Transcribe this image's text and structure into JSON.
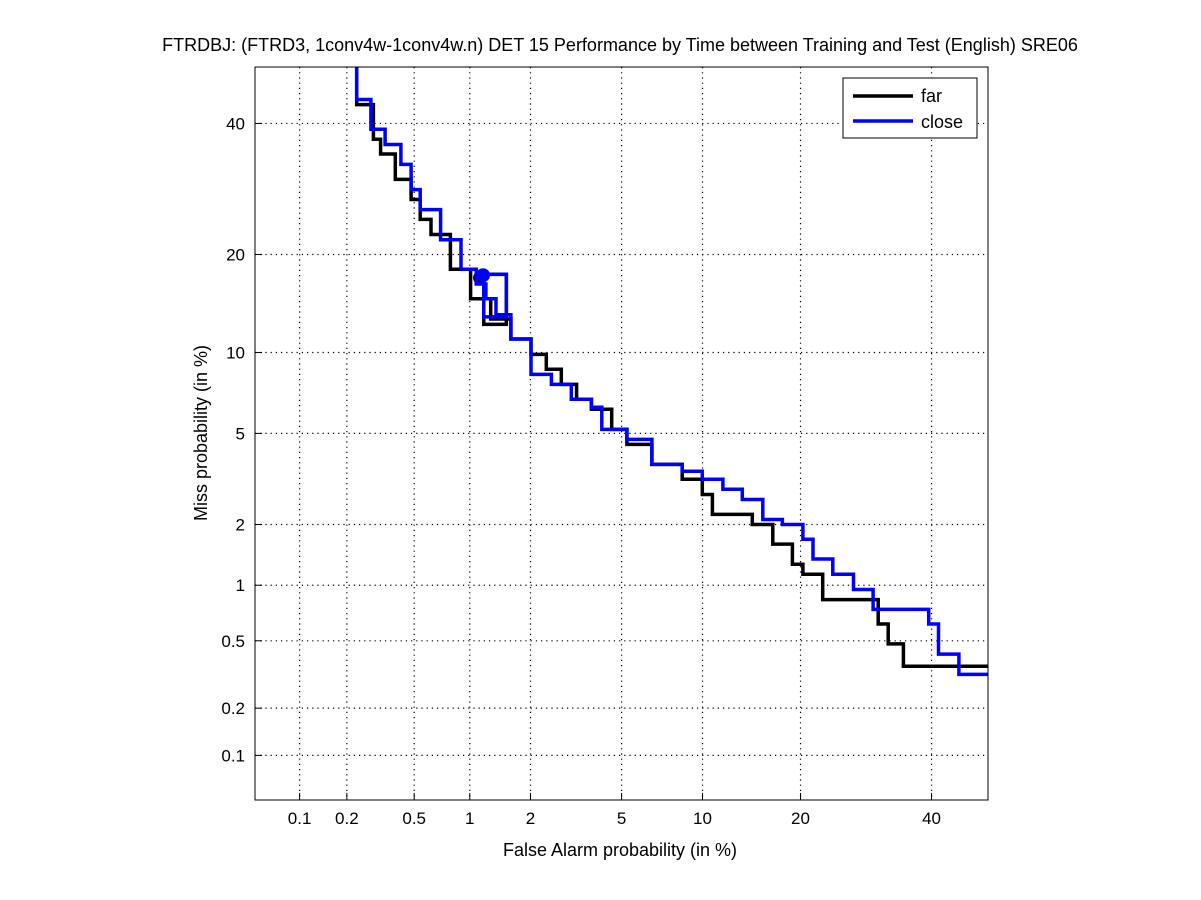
{
  "chart_data": {
    "type": "line",
    "title": "FTRDBJ: (FTRD3, 1conv4w-1conv4w.n) DET 15 Performance by Time between Training and Test (English) SRE06",
    "xlabel": "False Alarm probability (in %)",
    "ylabel": "Miss probability (in %)",
    "scale": "normal-deviate",
    "xlim": [
      0.05,
      50
    ],
    "ylim": [
      0.05,
      50
    ],
    "xticks": [
      0.1,
      0.2,
      0.5,
      1,
      2,
      5,
      10,
      20,
      40
    ],
    "xtick_labels": [
      "0.1",
      "0.2",
      "0.5",
      "1",
      "2",
      "5",
      "10",
      "20",
      "40"
    ],
    "yticks": [
      0.1,
      0.2,
      0.5,
      1,
      2,
      5,
      10,
      20,
      40
    ],
    "ytick_labels": [
      "0.1",
      "0.2",
      "0.5",
      "1",
      "2",
      "5",
      "10",
      "20",
      "40"
    ],
    "grid": true,
    "legend_position": "top-right",
    "series": [
      {
        "name": "far",
        "color": "#000000",
        "points": [
          [
            0.23,
            50
          ],
          [
            0.29,
            43.3
          ],
          [
            0.32,
            37.3
          ],
          [
            0.39,
            34.8
          ],
          [
            0.48,
            30.7
          ],
          [
            0.54,
            27.6
          ],
          [
            0.62,
            24.7
          ],
          [
            0.79,
            22.6
          ],
          [
            1.01,
            18.2
          ],
          [
            1.28,
            14.9
          ],
          [
            1.61,
            12.9
          ],
          [
            2.01,
            11.1
          ],
          [
            2.37,
            9.85
          ],
          [
            2.77,
            8.74
          ],
          [
            3.24,
            7.71
          ],
          [
            3.75,
            6.79
          ],
          [
            4.56,
            6.22
          ],
          [
            5.25,
            5.19
          ],
          [
            6.57,
            4.51
          ],
          [
            8.49,
            3.72
          ],
          [
            9.98,
            3.21
          ],
          [
            10.8,
            2.75
          ],
          [
            11.7,
            2.23
          ],
          [
            14.5,
            2.23
          ],
          [
            16.7,
            2.0
          ],
          [
            19.0,
            1.61
          ],
          [
            20.3,
            1.28
          ],
          [
            22.9,
            1.14
          ],
          [
            23.6,
            0.84
          ],
          [
            31.1,
            0.84
          ],
          [
            32.7,
            0.62
          ],
          [
            35.2,
            0.48
          ],
          [
            36.9,
            0.357
          ],
          [
            50,
            0.357
          ]
        ],
        "marker": [
          1.13,
          17.2
        ],
        "box": {
          "x": [
            1.18,
            1.53
          ],
          "y": [
            12.4,
            17.6
          ]
        }
      },
      {
        "name": "close",
        "color": "#0000ff",
        "points": [
          [
            0.23,
            50
          ],
          [
            0.28,
            44.2
          ],
          [
            0.34,
            39.0
          ],
          [
            0.42,
            36.4
          ],
          [
            0.48,
            33.1
          ],
          [
            0.54,
            29.1
          ],
          [
            0.7,
            26.1
          ],
          [
            0.9,
            21.9
          ],
          [
            1.08,
            18.2
          ],
          [
            1.21,
            16.5
          ],
          [
            1.36,
            14.9
          ],
          [
            1.61,
            13.3
          ],
          [
            2.01,
            11.1
          ],
          [
            2.5,
            8.38
          ],
          [
            3.07,
            7.71
          ],
          [
            3.75,
            6.79
          ],
          [
            4.15,
            6.33
          ],
          [
            5.25,
            5.19
          ],
          [
            6.57,
            4.73
          ],
          [
            8.49,
            3.72
          ],
          [
            9.98,
            3.48
          ],
          [
            11.7,
            3.21
          ],
          [
            13.5,
            2.9
          ],
          [
            15.6,
            2.61
          ],
          [
            17.8,
            2.11
          ],
          [
            20.3,
            2.0
          ],
          [
            21.6,
            1.7
          ],
          [
            24.3,
            1.36
          ],
          [
            27.3,
            1.14
          ],
          [
            30.3,
            0.95
          ],
          [
            31.9,
            0.745
          ],
          [
            39.5,
            0.745
          ],
          [
            41.2,
            0.62
          ],
          [
            44.8,
            0.42
          ],
          [
            50,
            0.32
          ]
        ],
        "marker": [
          1.17,
          17.5
        ],
        "box": {
          "x": [
            1.18,
            1.53
          ],
          "y": [
            13.1,
            17.6
          ]
        }
      }
    ]
  }
}
